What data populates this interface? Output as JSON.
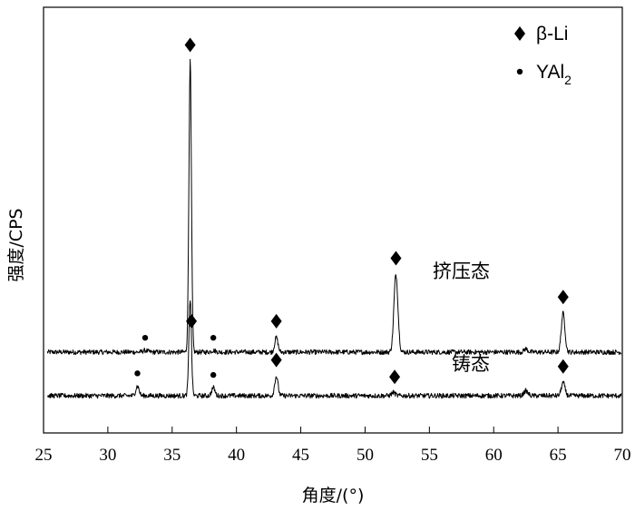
{
  "chart_data": {
    "type": "line",
    "title": "",
    "xlabel": "角度/(°)",
    "ylabel": "强度/CPS",
    "xlim": [
      25,
      70
    ],
    "xticks": [
      25,
      30,
      35,
      40,
      45,
      50,
      55,
      60,
      65,
      70
    ],
    "yticks_shown": false,
    "grid": false,
    "legend": {
      "position": "top-right",
      "entries": [
        {
          "marker": "diamond",
          "label": "β-Li"
        },
        {
          "marker": "dot",
          "label": "YAl",
          "subscript": "2"
        }
      ]
    },
    "series": [
      {
        "name": "挤压态",
        "baseline": 0.27,
        "noise": 0.03,
        "peaks": [
          {
            "x": 32.9,
            "height": 0.01,
            "width": 0.25
          },
          {
            "x": 36.4,
            "height": 1.8,
            "width": 0.14
          },
          {
            "x": 38.2,
            "height": 0.01,
            "width": 0.25
          },
          {
            "x": 43.1,
            "height": 0.09,
            "width": 0.18
          },
          {
            "x": 52.4,
            "height": 0.48,
            "width": 0.22
          },
          {
            "x": 62.5,
            "height": 0.02,
            "width": 0.2
          },
          {
            "x": 65.4,
            "height": 0.24,
            "width": 0.2
          }
        ],
        "markers": [
          {
            "x": 32.9,
            "type": "dot"
          },
          {
            "x": 36.4,
            "type": "diamond"
          },
          {
            "x": 38.2,
            "type": "dot"
          },
          {
            "x": 43.1,
            "type": "diamond"
          },
          {
            "x": 52.4,
            "type": "diamond"
          },
          {
            "x": 65.4,
            "type": "diamond"
          }
        ]
      },
      {
        "name": "铸态",
        "baseline": 0.0,
        "noise": 0.03,
        "peaks": [
          {
            "x": 32.3,
            "height": 0.06,
            "width": 0.18
          },
          {
            "x": 36.4,
            "height": 0.6,
            "width": 0.14
          },
          {
            "x": 38.2,
            "height": 0.05,
            "width": 0.18
          },
          {
            "x": 43.1,
            "height": 0.12,
            "width": 0.18
          },
          {
            "x": 52.2,
            "height": 0.02,
            "width": 0.2
          },
          {
            "x": 62.5,
            "height": 0.03,
            "width": 0.22
          },
          {
            "x": 65.4,
            "height": 0.08,
            "width": 0.2
          }
        ],
        "markers": [
          {
            "x": 32.3,
            "type": "dot"
          },
          {
            "x": 36.5,
            "type": "diamond"
          },
          {
            "x": 38.2,
            "type": "dot"
          },
          {
            "x": 43.1,
            "type": "diamond"
          },
          {
            "x": 52.3,
            "type": "diamond"
          },
          {
            "x": 65.4,
            "type": "diamond"
          }
        ]
      }
    ]
  }
}
